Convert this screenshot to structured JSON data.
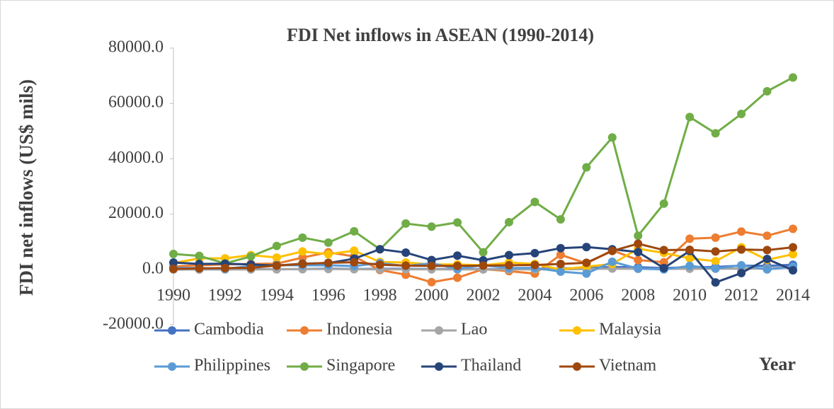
{
  "chart_data": {
    "type": "line",
    "title": "FDI Net inflows in ASEAN (1990-2014)",
    "y_label": "FDI net inflows (US$ mils)",
    "x_label": "Year",
    "x": [
      1990,
      1991,
      1992,
      1993,
      1994,
      1995,
      1996,
      1997,
      1998,
      1999,
      2000,
      2001,
      2002,
      2003,
      2004,
      2005,
      2006,
      2007,
      2008,
      2009,
      2010,
      2011,
      2012,
      2013,
      2014
    ],
    "xlim": [
      1990,
      2014
    ],
    "xticks": [
      1990,
      1992,
      1994,
      1996,
      1998,
      2000,
      2002,
      2004,
      2006,
      2008,
      2010,
      2012,
      2014
    ],
    "ylim": [
      -20000,
      80000
    ],
    "yticks": [
      {
        "value": -20000,
        "label": "-20000.0"
      },
      {
        "value": 0,
        "label": "0.0"
      },
      {
        "value": 20000,
        "label": "20000.0"
      },
      {
        "value": 40000,
        "label": "40000.0"
      },
      {
        "value": 60000,
        "label": "60000.0"
      },
      {
        "value": 80000,
        "label": "80000.0"
      }
    ],
    "series": [
      {
        "name": "Cambodia",
        "color": "#4472c4",
        "values": [
          0,
          0,
          30,
          50,
          70,
          150,
          290,
          170,
          240,
          230,
          150,
          150,
          150,
          80,
          130,
          380,
          480,
          870,
          820,
          540,
          780,
          900,
          1400,
          1300,
          1700
        ]
      },
      {
        "name": "Indonesia",
        "color": "#ed7d31",
        "values": [
          1100,
          1500,
          1800,
          2000,
          2100,
          4300,
          6200,
          4700,
          -200,
          -1900,
          -4600,
          -3000,
          100,
          -600,
          -1500,
          5300,
          2200,
          6900,
          3400,
          2600,
          11100,
          11500,
          13700,
          12200,
          14700
        ]
      },
      {
        "name": "Lao",
        "color": "#a5a5a5",
        "values": [
          6,
          8,
          8,
          30,
          60,
          95,
          160,
          86,
          45,
          52,
          34,
          24,
          5,
          19,
          17,
          28,
          187,
          324,
          228,
          190,
          279,
          301,
          294,
          427,
          913
        ]
      },
      {
        "name": "Malaysia",
        "color": "#ffc000",
        "values": [
          2300,
          4000,
          4000,
          5200,
          4300,
          6500,
          5500,
          6800,
          2700,
          2500,
          1800,
          1800,
          1500,
          2500,
          2000,
          0,
          1000,
          2000,
          7500,
          6000,
          4000,
          3000,
          8000,
          3500,
          5500
        ]
      },
      {
        "name": "Philippines",
        "color": "#5b9bd5",
        "values": [
          550,
          540,
          230,
          1240,
          1590,
          1480,
          1520,
          1220,
          2290,
          1250,
          2240,
          200,
          1540,
          490,
          590,
          -800,
          -1500,
          2800,
          300,
          0,
          1300,
          300,
          1500,
          0,
          1000
        ]
      },
      {
        "name": "Singapore",
        "color": "#70ad47",
        "values": [
          5600,
          4900,
          2200,
          4700,
          8500,
          11500,
          9700,
          13800,
          7300,
          16600,
          15500,
          17000,
          6200,
          17100,
          24400,
          18100,
          36900,
          47700,
          12200,
          23800,
          55100,
          49200,
          56200,
          64400,
          69400
        ]
      },
      {
        "name": "Thailand",
        "color": "#264478",
        "values": [
          2500,
          2000,
          2100,
          1800,
          1400,
          2100,
          2300,
          3900,
          7300,
          6100,
          3400,
          5000,
          3300,
          5200,
          5900,
          7700,
          8100,
          7300,
          6300,
          500,
          6700,
          -4700,
          -1300,
          3800,
          -300
        ]
      },
      {
        "name": "Vietnam",
        "color": "#9e480e",
        "values": [
          200,
          400,
          500,
          600,
          1400,
          2000,
          2400,
          2600,
          1700,
          1400,
          1300,
          1300,
          1400,
          1500,
          1600,
          2000,
          2400,
          6700,
          9300,
          7000,
          7100,
          6500,
          7200,
          7000,
          8000
        ]
      }
    ],
    "legend": "bottom"
  }
}
